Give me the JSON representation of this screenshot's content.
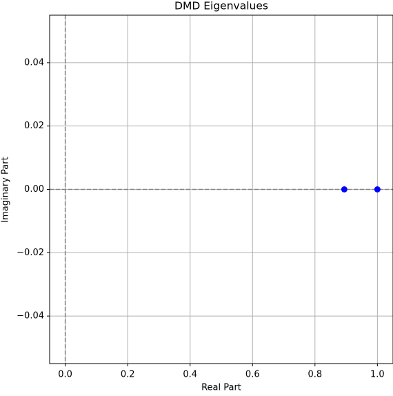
{
  "chart_data": {
    "type": "scatter",
    "title": "DMD Eigenvalues",
    "x_label": "Real Part",
    "y_label": "Imaginary Part",
    "series": [
      {
        "color": "#0000ff",
        "x": [
          0.894,
          1.0
        ],
        "values": [
          0,
          0
        ]
      }
    ],
    "xlim": [
      -0.05,
      1.05
    ],
    "ylim": [
      -0.055,
      0.055
    ],
    "xticks": [
      {
        "value": 0,
        "label": "0.0"
      },
      {
        "value": 0.2,
        "label": "0.2"
      },
      {
        "value": 0.4,
        "label": "0.4"
      },
      {
        "value": 0.6,
        "label": "0.6"
      },
      {
        "value": 0.8,
        "label": "0.8"
      },
      {
        "value": 1,
        "label": "1.0"
      }
    ],
    "yticks": [
      {
        "value": -0.04,
        "label": "−0.04"
      },
      {
        "value": -0.02,
        "label": "−0.02"
      },
      {
        "value": 0,
        "label": "0.00"
      },
      {
        "value": 0.02,
        "label": "0.02"
      },
      {
        "value": 0.04,
        "label": "0.04"
      }
    ],
    "grid": true,
    "hline": 0,
    "vline": 0
  }
}
